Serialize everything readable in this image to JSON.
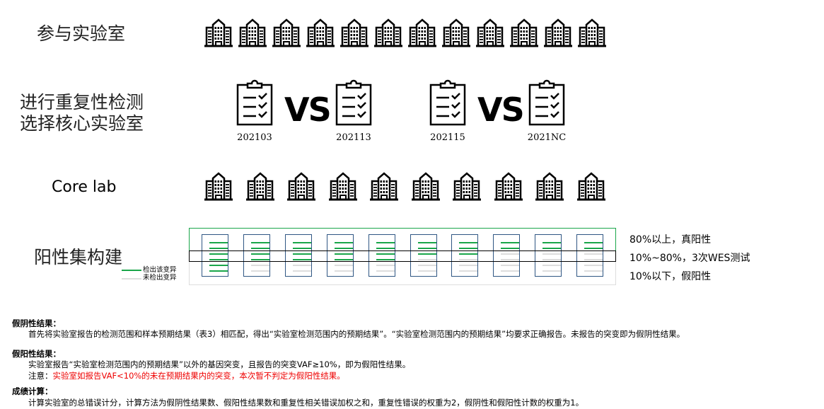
{
  "labels": {
    "participating": "参与实验室",
    "repeat_line1": "进行重复性检测",
    "repeat_line2": "选择核心实验室",
    "core_lab": "Core lab",
    "positive_set": "阳性集构建"
  },
  "participating_lab_count": 12,
  "core_lab_count": 10,
  "comparisons": [
    {
      "left": "202103",
      "vs": "VS",
      "right": "202113"
    },
    {
      "left": "202115",
      "vs": "VS",
      "right": "2021NC"
    }
  ],
  "legend": {
    "detected": "检出该变异",
    "not_detected": "未检出变异",
    "detected_color": "#1aa64a",
    "not_detected_color": "#dddddd"
  },
  "sample_detected_counts": [
    6,
    4,
    4,
    4,
    4,
    3,
    3,
    2,
    2,
    2
  ],
  "sample_total_variants": 6,
  "thresholds": [
    "80%以上，真阳性",
    "10%~80%，3次WES测试",
    "10%以下，假阳性"
  ],
  "rules": {
    "fn_title": "假阴性结果：",
    "fn_text": "首先将实验室报告的检测范围和样本预期结果（表3）相匹配，得出“实验室检测范围内的预期结果”。“实验室检测范围内的预期结果”均要求正确报告。未报告的突变即为假阴性结果。",
    "fp_title": "假阳性结果：",
    "fp_text": "实验室报告“实验室检测范围内的预期结果”以外的基因突变，且报告的突变VAF≥10%，即为假阳性结果。",
    "note_label": "注意：",
    "note_text": "实验室如报告VAF<10%的未在预期结果内的突变，本次暂不判定为假阳性结果。",
    "score_title": "成绩计算：",
    "score_text": "计算实验室的总错误计分，计算方法为假阴性结果数、假阳性结果数和重复性相关错误加权之和，重复性错误的权重为2，假阴性和假阳性计数的权重为1。"
  }
}
